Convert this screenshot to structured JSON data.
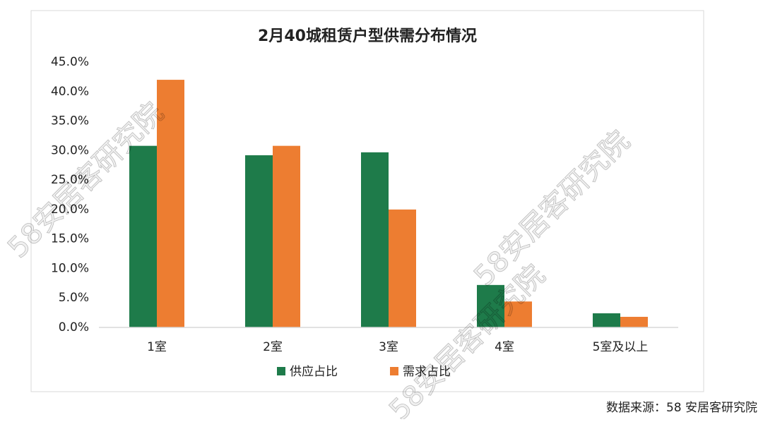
{
  "chart_data": {
    "type": "bar",
    "title": "2月40城租赁户型供需分布情况",
    "categories": [
      "1室",
      "2室",
      "3室",
      "4室",
      "5室及以上"
    ],
    "series": [
      {
        "name": "供应占比",
        "color": "#1e7b4a",
        "values": [
          30.8,
          29.2,
          29.7,
          7.2,
          2.4
        ]
      },
      {
        "name": "需求占比",
        "color": "#ed7d31",
        "values": [
          42.0,
          30.8,
          20.0,
          4.4,
          1.8
        ]
      }
    ],
    "ylim": [
      0,
      45
    ],
    "yticks": [
      {
        "value": 0,
        "label": "0.0%"
      },
      {
        "value": 5,
        "label": "5.0%"
      },
      {
        "value": 10,
        "label": "10.0%"
      },
      {
        "value": 15,
        "label": "15.0%"
      },
      {
        "value": 20,
        "label": "20.0%"
      },
      {
        "value": 25,
        "label": "25.0%"
      },
      {
        "value": 30,
        "label": "30.0%"
      },
      {
        "value": 35,
        "label": "35.0%"
      },
      {
        "value": 40,
        "label": "40.0%"
      },
      {
        "value": 45,
        "label": "45.0%"
      }
    ],
    "grid": false,
    "legend": "bottom"
  },
  "watermark": "58安居客研究院",
  "source": "数据来源：58 安居客研究院"
}
